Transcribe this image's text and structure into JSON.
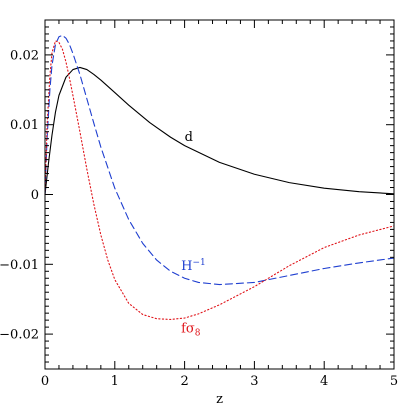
{
  "chart_data": {
    "type": "line",
    "title": "",
    "xlabel": "z",
    "ylabel": "",
    "xlim": [
      0,
      5
    ],
    "ylim": [
      -0.025,
      0.025
    ],
    "xticks": [
      0,
      1,
      2,
      3,
      4,
      5
    ],
    "xtick_labels": [
      "0",
      "1",
      "2",
      "3",
      "4",
      "5"
    ],
    "yticks": [
      -0.02,
      -0.01,
      0,
      0.01,
      0.02
    ],
    "ytick_labels": [
      "−0.02",
      "−0.01",
      "0",
      "0.01",
      "0.02"
    ],
    "grid": false,
    "legend": "none",
    "series": [
      {
        "label": "d",
        "label_suffix": "",
        "color": "#000000",
        "style": "solid",
        "label_at": [
          2.0,
          0.0077
        ],
        "x": [
          0,
          0.05,
          0.1,
          0.15,
          0.2,
          0.3,
          0.4,
          0.5,
          0.6,
          0.7,
          0.8,
          1.0,
          1.2,
          1.5,
          1.8,
          2.0,
          2.5,
          3.0,
          3.5,
          4.0,
          4.5,
          5.0
        ],
        "y": [
          0,
          0.0045,
          0.0085,
          0.0118,
          0.0142,
          0.0168,
          0.0179,
          0.0182,
          0.0179,
          0.0172,
          0.0164,
          0.0146,
          0.0128,
          0.0103,
          0.0082,
          0.007,
          0.0046,
          0.0029,
          0.0017,
          0.0009,
          0.0004,
          0.0001
        ]
      },
      {
        "label": "H",
        "label_suffix": "−1",
        "color": "#1f3fd0",
        "style": "dashed",
        "label_at": [
          1.95,
          -0.0108
        ],
        "x": [
          0,
          0.03,
          0.07,
          0.1,
          0.15,
          0.2,
          0.25,
          0.3,
          0.35,
          0.4,
          0.5,
          0.6,
          0.7,
          0.8,
          1.0,
          1.2,
          1.4,
          1.6,
          1.8,
          2.0,
          2.2,
          2.5,
          3.0,
          3.5,
          4.0,
          4.5,
          5.0
        ],
        "y": [
          0,
          0.008,
          0.015,
          0.0185,
          0.0215,
          0.0226,
          0.0228,
          0.0224,
          0.0215,
          0.0202,
          0.0172,
          0.0137,
          0.0102,
          0.0068,
          0.0009,
          -0.0036,
          -0.007,
          -0.0094,
          -0.011,
          -0.012,
          -0.0126,
          -0.0129,
          -0.0126,
          -0.0116,
          -0.0106,
          -0.0098,
          -0.0091
        ]
      },
      {
        "label": "fσ",
        "label_suffix": "8",
        "color": "#e0141a",
        "style": "dotted",
        "label_at": [
          1.95,
          -0.0198
        ],
        "x": [
          0,
          0.03,
          0.07,
          0.1,
          0.15,
          0.2,
          0.25,
          0.3,
          0.35,
          0.4,
          0.5,
          0.6,
          0.7,
          0.8,
          0.9,
          1.0,
          1.2,
          1.4,
          1.6,
          1.8,
          2.0,
          2.2,
          2.5,
          3.0,
          3.5,
          4.0,
          4.5,
          5.0
        ],
        "y": [
          0,
          0.01,
          0.017,
          0.0203,
          0.022,
          0.0218,
          0.0208,
          0.019,
          0.0167,
          0.0142,
          0.009,
          0.0036,
          -0.0014,
          -0.0058,
          -0.0094,
          -0.0122,
          -0.0156,
          -0.0172,
          -0.0178,
          -0.0179,
          -0.0177,
          -0.0171,
          -0.0158,
          -0.0132,
          -0.0102,
          -0.0076,
          -0.0058,
          -0.0045
        ]
      }
    ]
  }
}
